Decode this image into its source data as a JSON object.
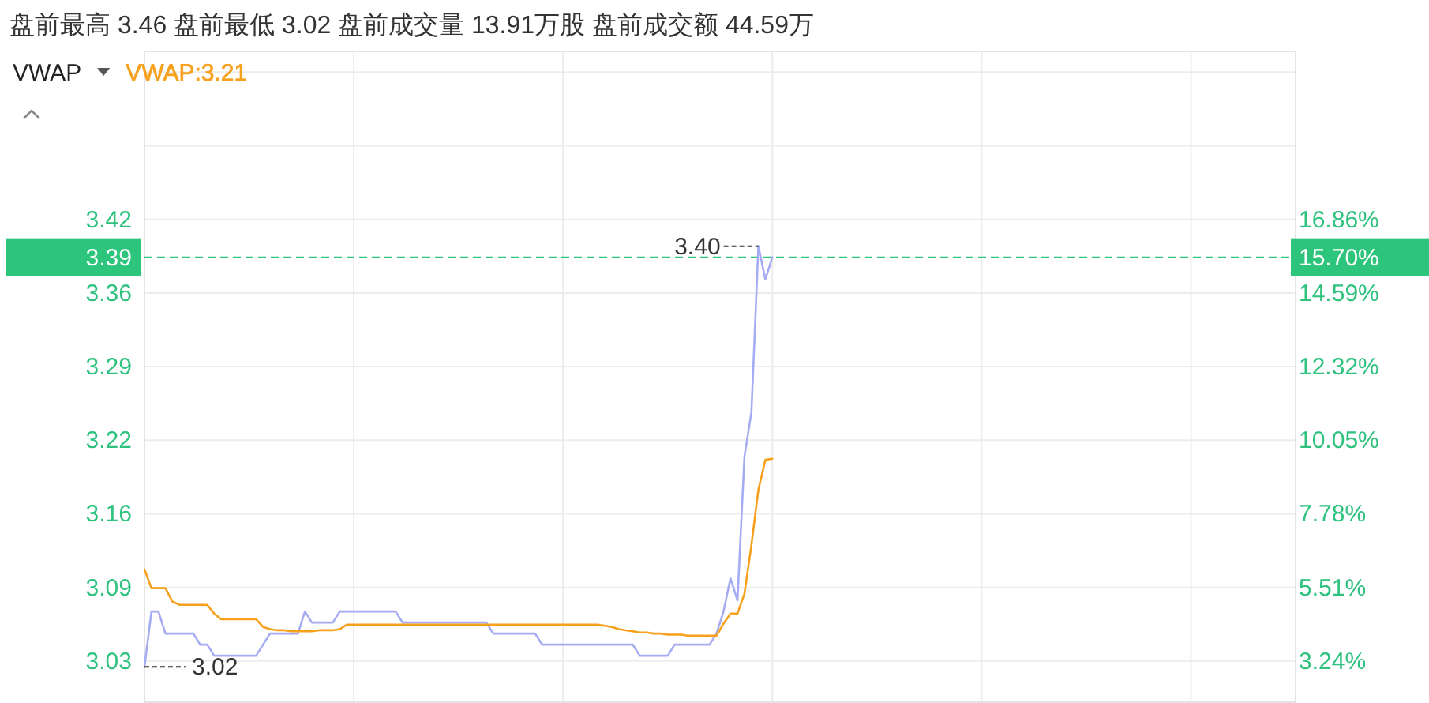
{
  "chart_data": {
    "type": "line",
    "title": "盘前最高 3.46 盘前最低 3.02 盘前成交量 13.91万股 盘前成交额 44.59万",
    "categories": [
      null,
      null,
      null,
      null,
      null,
      null,
      null,
      null,
      null,
      null,
      null,
      null,
      null,
      null,
      null,
      null,
      null,
      null,
      null,
      null,
      null,
      null,
      null,
      null,
      null,
      null,
      null,
      null,
      null,
      null,
      null,
      null,
      null,
      null,
      null,
      null,
      null,
      null,
      null,
      null,
      null,
      null,
      null,
      null,
      null,
      null,
      null,
      null,
      null,
      null,
      null,
      null,
      null,
      null,
      null,
      null,
      null,
      null,
      null,
      null,
      null,
      null,
      null,
      null,
      null,
      null,
      null,
      null,
      null,
      null,
      null,
      null,
      null,
      null,
      null,
      null,
      null,
      null,
      null,
      null,
      null,
      null,
      null,
      null,
      null,
      null,
      null,
      null,
      null,
      null,
      null,
      null,
      null,
      null,
      null,
      null,
      null,
      null,
      null,
      null,
      null,
      null,
      null,
      null,
      null,
      null,
      null,
      null,
      null,
      null,
      null,
      null,
      null,
      null,
      null,
      null,
      null,
      null,
      null,
      null,
      null,
      null,
      null,
      null,
      null,
      null,
      null,
      null,
      null,
      null,
      null,
      null,
      null,
      null,
      null,
      null,
      null,
      null,
      null,
      null,
      null,
      null,
      null,
      null,
      null,
      null,
      null,
      null,
      null,
      null,
      null,
      null,
      null,
      null,
      null,
      null,
      null,
      null,
      null,
      null,
      null,
      null,
      null,
      null,
      null,
      null
    ],
    "ylim": [
      2.988,
      3.576
    ],
    "yticks": [
      {
        "value": 3.0252,
        "label": "3.03"
      },
      {
        "value": 3.0917,
        "label": "3.09"
      },
      {
        "value": 3.1582,
        "label": "3.16"
      },
      {
        "value": 3.2247,
        "label": "3.22"
      },
      {
        "value": 3.2912,
        "label": "3.29"
      },
      {
        "value": 3.3577,
        "label": "3.36"
      },
      {
        "value": 3.4242,
        "label": "3.42"
      },
      {
        "value": 3.4907,
        "label": null
      },
      {
        "value": 3.5572,
        "label": null
      }
    ],
    "y2lim": [
      1.97,
      22.04
    ],
    "y2ticks": [
      {
        "value": 3.24,
        "label": "3.24%"
      },
      {
        "value": 5.51,
        "label": "5.51%"
      },
      {
        "value": 7.78,
        "label": "7.78%"
      },
      {
        "value": 10.05,
        "label": "10.05%"
      },
      {
        "value": 12.32,
        "label": "12.32%"
      },
      {
        "value": 14.59,
        "label": "14.59%"
      },
      {
        "value": 16.86,
        "label": "16.86%"
      }
    ],
    "grid": true,
    "legend": "top left",
    "series": [
      {
        "color": "#a5acf2",
        "values": [
          3.02,
          3.07,
          3.07,
          3.05,
          3.05,
          3.05,
          3.05,
          3.05,
          3.04,
          3.04,
          3.03,
          3.03,
          3.03,
          3.03,
          3.03,
          3.03,
          3.03,
          3.04,
          3.05,
          3.05,
          3.05,
          3.05,
          3.05,
          3.07,
          3.06,
          3.06,
          3.06,
          3.06,
          3.07,
          3.07,
          3.07,
          3.07,
          3.07,
          3.07,
          3.07,
          3.07,
          3.07,
          3.06,
          3.06,
          3.06,
          3.06,
          3.06,
          3.06,
          3.06,
          3.06,
          3.06,
          3.06,
          3.06,
          3.06,
          3.06,
          3.05,
          3.05,
          3.05,
          3.05,
          3.05,
          3.05,
          3.05,
          3.04,
          3.04,
          3.04,
          3.04,
          3.04,
          3.04,
          3.04,
          3.04,
          3.04,
          3.04,
          3.04,
          3.04,
          3.04,
          3.04,
          3.03,
          3.03,
          3.03,
          3.03,
          3.03,
          3.04,
          3.04,
          3.04,
          3.04,
          3.04,
          3.04,
          3.05,
          3.07,
          3.1,
          3.08,
          3.21,
          3.25,
          3.4,
          3.37,
          3.39,
          null,
          null,
          null,
          null,
          null,
          null,
          null,
          null,
          null,
          null,
          null,
          null,
          null,
          null,
          null,
          null,
          null,
          null,
          null,
          null,
          null,
          null,
          null,
          null,
          null,
          null,
          null,
          null,
          null,
          null,
          null,
          null,
          null,
          null,
          null,
          null,
          null,
          null,
          null,
          null,
          null,
          null,
          null,
          null,
          null,
          null,
          null,
          null,
          null,
          null,
          null,
          null,
          null,
          null,
          null,
          null,
          null,
          null,
          null,
          null,
          null,
          null,
          null,
          null,
          null,
          null,
          null,
          null,
          null,
          null,
          null,
          null,
          null,
          null,
          null
        ]
      },
      {
        "name": "VWAP:3.21",
        "color": "#f7a01c",
        "values": [
          3.108,
          3.091,
          3.091,
          3.091,
          3.079,
          3.076,
          3.076,
          3.076,
          3.076,
          3.076,
          3.068,
          3.063,
          3.063,
          3.063,
          3.063,
          3.063,
          3.063,
          3.056,
          3.054,
          3.053,
          3.053,
          3.052,
          3.052,
          3.052,
          3.052,
          3.053,
          3.053,
          3.053,
          3.054,
          3.058,
          3.058,
          3.058,
          3.058,
          3.058,
          3.058,
          3.058,
          3.058,
          3.058,
          3.058,
          3.058,
          3.058,
          3.058,
          3.058,
          3.058,
          3.058,
          3.058,
          3.058,
          3.058,
          3.058,
          3.058,
          3.058,
          3.058,
          3.058,
          3.058,
          3.058,
          3.058,
          3.058,
          3.058,
          3.058,
          3.058,
          3.058,
          3.058,
          3.058,
          3.058,
          3.058,
          3.058,
          3.057,
          3.056,
          3.054,
          3.053,
          3.052,
          3.051,
          3.051,
          3.05,
          3.05,
          3.049,
          3.049,
          3.049,
          3.048,
          3.048,
          3.048,
          3.048,
          3.048,
          3.059,
          3.068,
          3.068,
          3.086,
          3.13,
          3.18,
          3.207,
          3.208,
          null,
          null,
          null,
          null,
          null,
          null,
          null,
          null,
          null,
          null,
          null,
          null,
          null,
          null,
          null,
          null,
          null,
          null,
          null,
          null,
          null,
          null,
          null,
          null,
          null,
          null,
          null,
          null,
          null,
          null,
          null,
          null,
          null,
          null,
          null,
          null,
          null,
          null,
          null,
          null,
          null,
          null,
          null,
          null,
          null,
          null,
          null,
          null,
          null,
          null,
          null,
          null,
          null,
          null,
          null,
          null,
          null,
          null,
          null,
          null,
          null,
          null,
          null,
          null,
          null,
          null,
          null,
          null,
          null,
          null,
          null,
          null,
          null,
          null,
          null
        ]
      }
    ],
    "ref_lines": [
      {
        "axis": "y",
        "value": 3.39,
        "label": "3.39",
        "color": "#2dc57c",
        "line_style": "dashed"
      }
    ],
    "annotations": [
      "VWAP",
      "3.40",
      "3.02",
      "15.70%"
    ]
  }
}
